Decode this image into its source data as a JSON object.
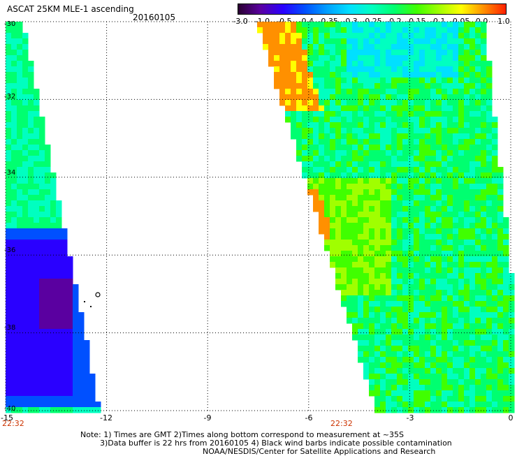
{
  "header": {
    "title": "ASCAT 25KM MLE-1 ascending",
    "date": "20160105"
  },
  "legend": {
    "labels": [
      "-3.0",
      "-1.0",
      "-0.5",
      "-0.4",
      "-0.35",
      "-0.3",
      "-0.25",
      "-0.2",
      "-0.15",
      "-0.1",
      "-0.05",
      "0.0",
      "1.0"
    ],
    "colors": [
      "#2a0030",
      "#5a00a0",
      "#2a00ff",
      "#0050ff",
      "#00a0ff",
      "#00e0ff",
      "#00ffc0",
      "#00ff70",
      "#40ff00",
      "#a0ff00",
      "#ffff00",
      "#ff9000",
      "#ff2000"
    ]
  },
  "map": {
    "lon_ticks": [
      "-15",
      "-12",
      "-9",
      "-6",
      "-3",
      "0"
    ],
    "lat_ticks": [
      "-30",
      "-32",
      "-34",
      "-36",
      "-38",
      "-40"
    ],
    "time_labels": [
      "22:32",
      "22:32"
    ]
  },
  "notes": [
    "Note: 1) Times are GMT 2)Times along bottom correspond to measurement at ~35S",
    "3)Data buffer is 22 hrs from 20160105 4) Black wind barbs indicate possible contamination",
    "NOAA/NESDIS/Center for Satellite Applications and Research"
  ]
}
